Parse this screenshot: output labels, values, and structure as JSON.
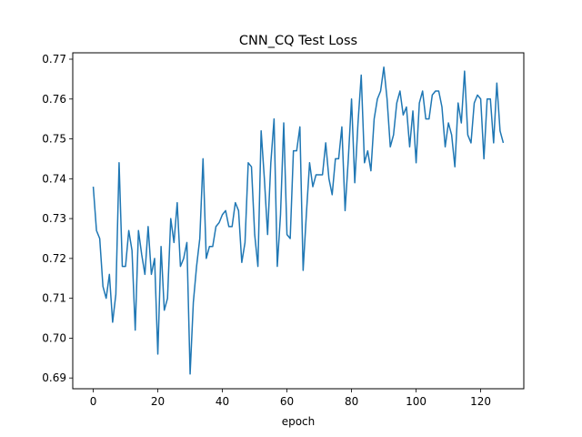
{
  "chart_data": {
    "type": "line",
    "title": "CNN_CQ Test Loss",
    "xlabel": "epoch",
    "ylabel": "",
    "xlim": [
      -6.35,
      133.35
    ],
    "ylim": [
      0.6873,
      0.7716
    ],
    "xticks": [
      0,
      20,
      40,
      60,
      80,
      100,
      120
    ],
    "yticks": [
      0.69,
      0.7,
      0.71,
      0.72,
      0.73,
      0.74,
      0.75,
      0.76,
      0.77
    ],
    "ytick_labels": [
      "0.69",
      "0.70",
      "0.71",
      "0.72",
      "0.73",
      "0.74",
      "0.75",
      "0.76",
      "0.77"
    ],
    "grid": false,
    "series": [
      {
        "color": "#1f77b4",
        "x": [
          0,
          1,
          2,
          3,
          4,
          5,
          6,
          7,
          8,
          9,
          10,
          11,
          12,
          13,
          14,
          15,
          16,
          17,
          18,
          19,
          20,
          21,
          22,
          23,
          24,
          25,
          26,
          27,
          28,
          29,
          30,
          31,
          32,
          33,
          34,
          35,
          36,
          37,
          38,
          39,
          40,
          41,
          42,
          43,
          44,
          45,
          46,
          47,
          48,
          49,
          50,
          51,
          52,
          53,
          54,
          55,
          56,
          57,
          58,
          59,
          60,
          61,
          62,
          63,
          64,
          65,
          66,
          67,
          68,
          69,
          70,
          71,
          72,
          73,
          74,
          75,
          76,
          77,
          78,
          79,
          80,
          81,
          82,
          83,
          84,
          85,
          86,
          87,
          88,
          89,
          90,
          91,
          92,
          93,
          94,
          95,
          96,
          97,
          98,
          99,
          100,
          101,
          102,
          103,
          104,
          105,
          106,
          107,
          108,
          109,
          110,
          111,
          112,
          113,
          114,
          115,
          116,
          117,
          118,
          119,
          120,
          121,
          122,
          123,
          124,
          125,
          126,
          127
        ],
        "values": [
          0.738,
          0.727,
          0.725,
          0.713,
          0.71,
          0.716,
          0.704,
          0.711,
          0.744,
          0.718,
          0.718,
          0.727,
          0.722,
          0.702,
          0.727,
          0.721,
          0.716,
          0.728,
          0.716,
          0.72,
          0.696,
          0.723,
          0.707,
          0.71,
          0.73,
          0.724,
          0.734,
          0.718,
          0.72,
          0.724,
          0.691,
          0.709,
          0.718,
          0.725,
          0.745,
          0.72,
          0.723,
          0.723,
          0.728,
          0.729,
          0.731,
          0.732,
          0.728,
          0.728,
          0.734,
          0.732,
          0.719,
          0.724,
          0.744,
          0.743,
          0.726,
          0.718,
          0.752,
          0.74,
          0.726,
          0.744,
          0.755,
          0.718,
          0.731,
          0.754,
          0.726,
          0.725,
          0.747,
          0.747,
          0.753,
          0.717,
          0.731,
          0.744,
          0.738,
          0.741,
          0.741,
          0.741,
          0.749,
          0.74,
          0.736,
          0.745,
          0.745,
          0.753,
          0.732,
          0.745,
          0.76,
          0.739,
          0.754,
          0.766,
          0.744,
          0.747,
          0.742,
          0.755,
          0.76,
          0.762,
          0.768,
          0.76,
          0.748,
          0.751,
          0.759,
          0.762,
          0.756,
          0.758,
          0.748,
          0.757,
          0.744,
          0.759,
          0.762,
          0.755,
          0.755,
          0.761,
          0.762,
          0.762,
          0.758,
          0.748,
          0.754,
          0.751,
          0.743,
          0.759,
          0.754,
          0.767,
          0.751,
          0.749,
          0.759,
          0.761,
          0.76,
          0.745,
          0.76,
          0.76,
          0.749,
          0.764,
          0.752,
          0.749
        ]
      }
    ]
  }
}
